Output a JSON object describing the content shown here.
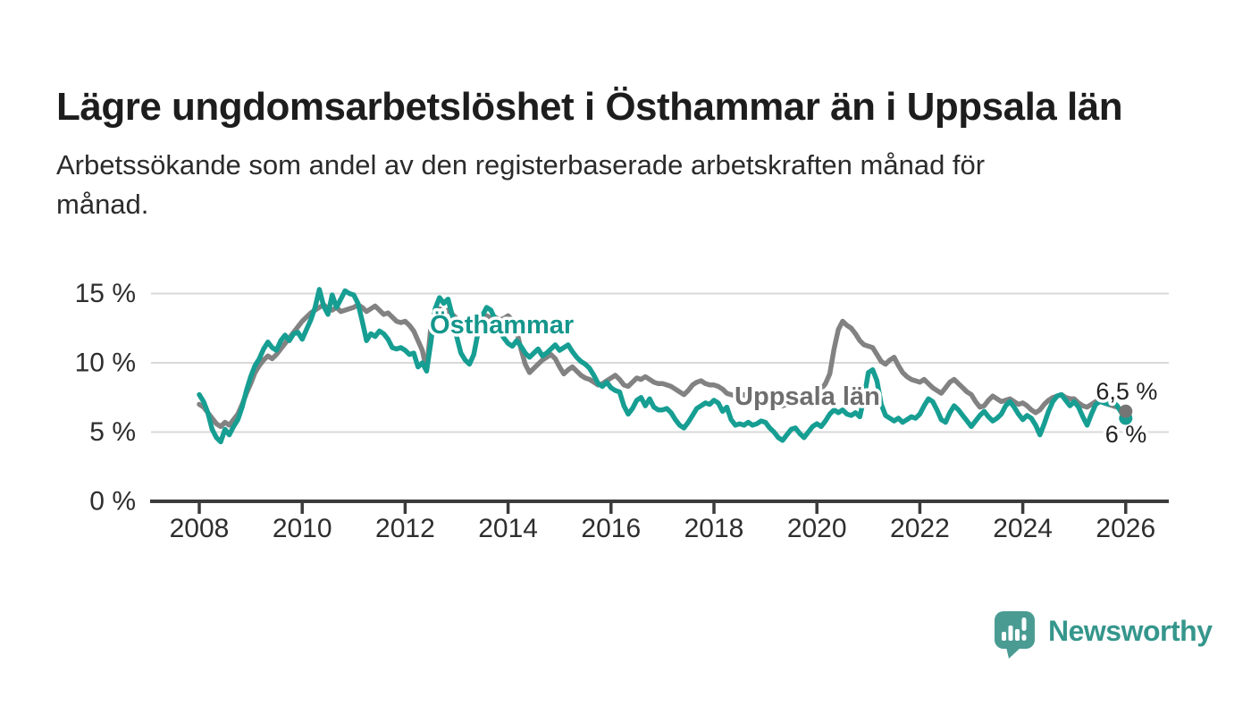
{
  "header": {
    "title": "Lägre ungdomsarbetslöshet i Östhammar än i Uppsala län",
    "subtitle": "Arbetssökande som andel av den registerbaserade arbetskraften månad för månad.",
    "subtitle_lines": [
      "Arbetssökande som andel av den registerbaserade arbetskraften månad för",
      "månad."
    ]
  },
  "footer": {
    "brand": "Newsworthy",
    "brand_color": "#35968c",
    "mark_color": "#4a9c93",
    "mark_icon": "speech-bubble-bar-chart-exclamation"
  },
  "chart_data": {
    "type": "line",
    "title": "Lägre ungdomsarbetslöshet i Östhammar än i Uppsala län",
    "subtitle": "Arbetssökande som andel av den registerbaserade arbetskraften månad för månad.",
    "unit": "%",
    "x_start_year": 2008,
    "x_step_months": 1,
    "x_end_year": 2026,
    "ylim": [
      0,
      16.5
    ],
    "y_ticks": [
      0,
      5,
      10,
      15
    ],
    "y_tick_labels": [
      "0 %",
      "5 %",
      "10 %",
      "15 %"
    ],
    "x_ticks": [
      2008,
      2010,
      2012,
      2014,
      2016,
      2018,
      2020,
      2022,
      2024,
      2026
    ],
    "x_tick_labels": [
      "2008",
      "2010",
      "2012",
      "2014",
      "2016",
      "2018",
      "2020",
      "2022",
      "2024",
      "2026"
    ],
    "grid": true,
    "legend_position": "inline-labels",
    "series": [
      {
        "name": "Uppsala län",
        "color": "#828282",
        "dot_color": "#757575",
        "end_value_label": "6,5 %",
        "end_dot": true,
        "values": [
          7.0,
          6.8,
          6.4,
          6.0,
          5.6,
          5.4,
          5.7,
          5.5,
          5.9,
          6.3,
          7.0,
          7.8,
          8.5,
          9.3,
          9.8,
          10.2,
          10.5,
          10.3,
          10.6,
          11.0,
          11.4,
          11.8,
          12.2,
          12.6,
          13.0,
          13.3,
          13.6,
          13.8,
          14.0,
          14.2,
          13.9,
          13.8,
          14.0,
          13.7,
          13.8,
          13.9,
          14.0,
          14.2,
          14.0,
          13.7,
          13.9,
          14.1,
          13.8,
          13.5,
          13.6,
          13.3,
          13.0,
          12.9,
          13.0,
          12.7,
          12.3,
          11.6,
          10.9,
          9.5,
          12.6,
          13.5,
          13.9,
          13.6,
          13.8,
          13.5,
          13.2,
          12.8,
          12.5,
          12.3,
          12.6,
          12.9,
          13.1,
          13.4,
          13.2,
          13.3,
          13.1,
          13.2,
          13.4,
          13.1,
          12.3,
          11.0,
          9.9,
          9.3,
          9.6,
          9.9,
          10.2,
          10.4,
          10.6,
          10.3,
          9.7,
          9.2,
          9.5,
          9.7,
          9.4,
          9.1,
          8.9,
          8.8,
          8.6,
          8.4,
          8.5,
          8.7,
          8.9,
          9.1,
          8.8,
          8.4,
          8.3,
          8.6,
          8.9,
          8.8,
          9.0,
          8.8,
          8.6,
          8.5,
          8.5,
          8.4,
          8.3,
          8.1,
          7.9,
          7.7,
          8.0,
          8.4,
          8.6,
          8.7,
          8.5,
          8.4,
          8.4,
          8.3,
          8.1,
          7.8,
          7.7,
          7.6,
          7.6,
          7.7,
          7.5,
          7.4,
          7.3,
          7.2,
          7.3,
          7.2,
          7.1,
          7.0,
          6.9,
          7.0,
          7.1,
          7.0,
          7.1,
          7.2,
          7.4,
          7.6,
          7.8,
          8.1,
          8.5,
          9.2,
          11.0,
          12.4,
          13.0,
          12.7,
          12.5,
          12.1,
          11.6,
          11.3,
          11.2,
          11.1,
          10.6,
          10.1,
          9.9,
          10.2,
          10.4,
          9.8,
          9.3,
          9.0,
          8.8,
          8.7,
          8.6,
          8.8,
          8.5,
          8.2,
          8.0,
          7.8,
          8.2,
          8.6,
          8.8,
          8.5,
          8.2,
          7.9,
          7.7,
          7.2,
          6.8,
          6.9,
          7.3,
          7.6,
          7.4,
          7.2,
          7.3,
          7.4,
          7.2,
          7.0,
          7.1,
          6.9,
          6.6,
          6.4,
          6.6,
          7.0,
          7.3,
          7.5,
          7.6,
          7.7,
          7.5,
          7.4,
          7.4,
          7.1,
          6.9,
          6.8,
          7.0,
          7.2,
          7.3,
          7.1,
          7.0,
          6.9,
          6.8,
          6.6,
          6.5
        ]
      },
      {
        "name": "Östhammar",
        "color": "#179e93",
        "dot_color": "#179e93",
        "end_value_label": "6 %",
        "end_dot": true,
        "values": [
          7.7,
          7.2,
          6.4,
          5.2,
          4.6,
          4.3,
          5.2,
          4.8,
          5.4,
          5.9,
          6.8,
          8.0,
          9.0,
          9.8,
          10.3,
          11.0,
          11.5,
          11.1,
          10.9,
          11.6,
          12.0,
          11.6,
          12.1,
          12.2,
          11.7,
          12.4,
          13.1,
          14.0,
          15.3,
          14.1,
          13.5,
          14.9,
          14.0,
          14.6,
          15.2,
          15.0,
          14.9,
          14.3,
          13.0,
          11.6,
          12.1,
          11.9,
          12.3,
          12.1,
          11.7,
          11.1,
          11.0,
          11.1,
          10.9,
          10.6,
          10.7,
          9.7,
          10.0,
          9.4,
          11.5,
          13.9,
          14.7,
          14.3,
          14.6,
          13.4,
          11.9,
          10.7,
          10.2,
          9.9,
          10.6,
          12.2,
          13.4,
          14.0,
          13.8,
          13.1,
          12.3,
          11.8,
          11.4,
          11.2,
          11.6,
          11.2,
          10.7,
          10.4,
          10.7,
          11.0,
          10.5,
          10.7,
          11.0,
          11.3,
          10.9,
          11.1,
          11.3,
          10.8,
          10.4,
          10.1,
          9.9,
          9.6,
          9.1,
          8.5,
          8.3,
          8.6,
          8.2,
          8.0,
          7.9,
          6.9,
          6.3,
          6.7,
          7.3,
          7.5,
          6.9,
          7.4,
          6.8,
          6.6,
          6.6,
          6.7,
          6.4,
          5.9,
          5.5,
          5.3,
          5.7,
          6.2,
          6.7,
          6.9,
          7.1,
          7.0,
          7.3,
          7.1,
          6.5,
          6.8,
          5.9,
          5.5,
          5.6,
          5.5,
          5.7,
          5.5,
          5.6,
          5.8,
          5.7,
          5.3,
          5.0,
          4.6,
          4.4,
          4.8,
          5.2,
          5.3,
          4.9,
          4.6,
          5.0,
          5.4,
          5.6,
          5.4,
          5.8,
          6.3,
          6.6,
          6.4,
          6.6,
          6.3,
          6.2,
          6.4,
          6.1,
          7.5,
          9.3,
          9.5,
          8.7,
          7.0,
          6.2,
          6.0,
          5.8,
          6.0,
          5.7,
          5.9,
          6.1,
          6.0,
          6.3,
          6.9,
          7.4,
          7.2,
          6.6,
          5.9,
          5.7,
          6.4,
          6.9,
          6.6,
          6.2,
          5.8,
          5.4,
          5.8,
          6.2,
          6.5,
          6.1,
          5.8,
          6.0,
          6.3,
          6.9,
          7.2,
          6.8,
          6.3,
          5.9,
          6.2,
          6.0,
          5.5,
          4.8,
          5.6,
          6.5,
          7.2,
          7.6,
          7.7,
          7.3,
          6.9,
          7.2,
          6.8,
          6.1,
          5.5,
          6.3,
          7.0,
          7.2,
          7.1,
          7.0,
          7.2,
          6.9,
          6.4,
          6.0
        ]
      }
    ],
    "annotations": [
      {
        "id": "osthammar-series-label",
        "text": "Östhammar",
        "year": 2012.48,
        "value": 12.72,
        "color": "#14968c",
        "weight": 700,
        "size": 29
      },
      {
        "id": "uppsala-series-label",
        "text": "Uppsala län",
        "year": 2018.4,
        "value": 7.55,
        "color": "#6e6e6e",
        "weight": 700,
        "size": 29
      },
      {
        "id": "uppsala-end-value",
        "text": "6,5 %",
        "year": 2025.42,
        "value": 7.95,
        "color": "#222222",
        "weight": 400,
        "size": 27
      },
      {
        "id": "osthammar-end-value",
        "text": "6 %",
        "year": 2025.6,
        "value": 4.85,
        "color": "#222222",
        "weight": 400,
        "size": 27
      }
    ]
  }
}
